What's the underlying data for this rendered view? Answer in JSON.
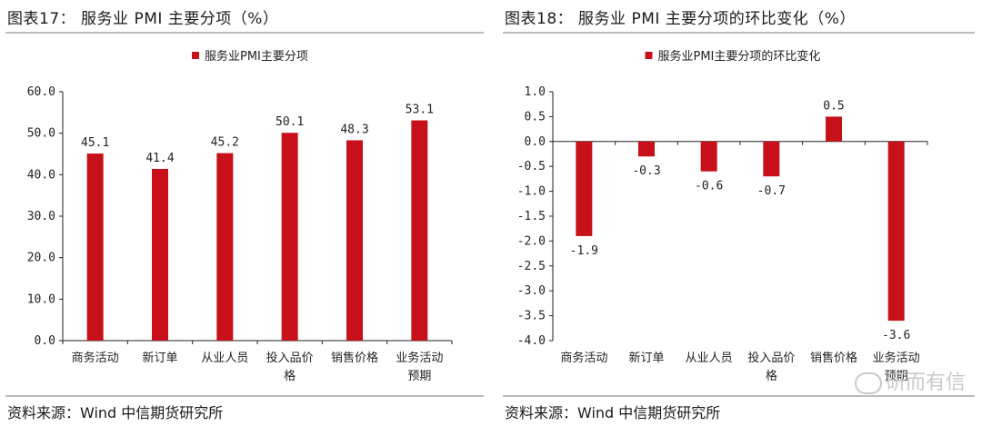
{
  "colors": {
    "bar": "#C8101A",
    "axis": "#222222",
    "rule": "#bdbdbd"
  },
  "left": {
    "title": "图表17： 服务业 PMI 主要分项（%）",
    "source": "资料来源：Wind 中信期货研究所"
  },
  "right": {
    "title": "图表18： 服务业 PMI 主要分项的环比变化（%）",
    "source": "资料来源：Wind 中信期货研究所"
  },
  "watermark": "研而有信",
  "chart_data": [
    {
      "type": "bar",
      "legend": "服务业PMI主要分项",
      "categories": [
        [
          "商务活动"
        ],
        [
          "新订单"
        ],
        [
          "从业人员"
        ],
        [
          "投入品价",
          "格"
        ],
        [
          "销售价格"
        ],
        [
          "业务活动",
          "预期"
        ]
      ],
      "values": [
        45.1,
        41.4,
        45.2,
        50.1,
        48.3,
        53.1
      ],
      "value_labels": [
        "45.1",
        "41.4",
        "45.2",
        "50.1",
        "48.3",
        "53.1"
      ],
      "ylim": [
        0,
        60
      ],
      "yticks": [
        "0.0",
        "10.0",
        "20.0",
        "30.0",
        "40.0",
        "50.0",
        "60.0"
      ],
      "ytick_values": [
        0,
        10,
        20,
        30,
        40,
        50,
        60
      ],
      "grid": false,
      "legend_position": "top"
    },
    {
      "type": "bar",
      "legend": "服务业PMI主要分项的环比变化",
      "categories": [
        [
          "商务活动"
        ],
        [
          "新订单"
        ],
        [
          "从业人员"
        ],
        [
          "投入品价",
          "格"
        ],
        [
          "销售价格"
        ],
        [
          "业务活动",
          "预期"
        ]
      ],
      "values": [
        -1.9,
        -0.3,
        -0.6,
        -0.7,
        0.5,
        -3.6
      ],
      "value_labels": [
        "-1.9",
        "-0.3",
        "-0.6",
        "-0.7",
        "0.5",
        "-3.6"
      ],
      "ylim": [
        -4,
        1
      ],
      "yticks": [
        "1.0",
        "0.5",
        "0.0",
        "-0.5",
        "-1.0",
        "-1.5",
        "-2.0",
        "-2.5",
        "-3.0",
        "-3.5",
        "-4.0"
      ],
      "ytick_values": [
        1.0,
        0.5,
        0.0,
        -0.5,
        -1.0,
        -1.5,
        -2.0,
        -2.5,
        -3.0,
        -3.5,
        -4.0
      ],
      "grid": false,
      "legend_position": "top"
    }
  ]
}
